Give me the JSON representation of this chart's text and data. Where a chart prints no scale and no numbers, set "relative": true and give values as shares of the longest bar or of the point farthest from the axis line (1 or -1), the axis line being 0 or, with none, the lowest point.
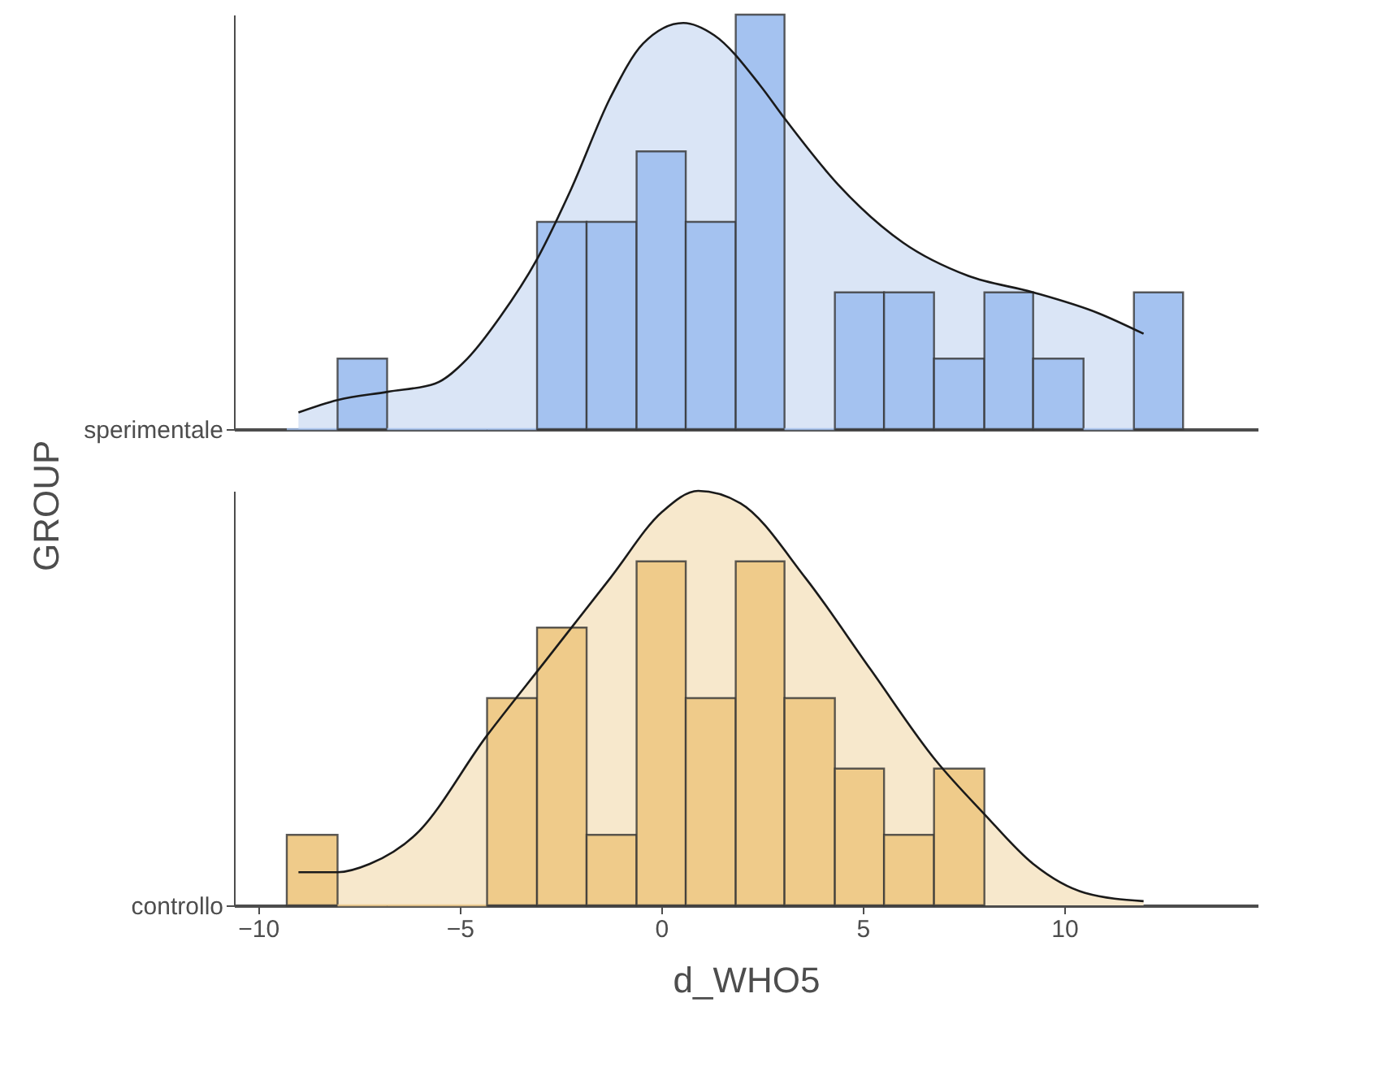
{
  "chart_data": [
    {
      "type": "histogram",
      "relative": true,
      "ylabel": "GROUP",
      "xlim": [
        -10.6,
        14.8
      ],
      "xticks": [
        -10,
        -5,
        0,
        5,
        10
      ],
      "tick_labels": false,
      "series": [
        {
          "type": "area",
          "color": "#dae5f6",
          "x": [
            -9,
            -8.03,
            -6.79,
            -5.61,
            -4.81,
            -4,
            -3.08,
            -2.23,
            -1.26,
            -0.45,
            0.55,
            1.32,
            2.45,
            3.06,
            4.39,
            6,
            7.61,
            9.23,
            10.84,
            11.97
          ],
          "values": [
            0.04,
            0.07,
            0.09,
            0.11,
            0.17,
            0.27,
            0.41,
            0.58,
            0.8,
            0.93,
            0.98,
            0.95,
            0.83,
            0.75,
            0.59,
            0.45,
            0.37,
            0.33,
            0.28,
            0.23
          ]
        },
        {
          "type": "histogram",
          "name": "sperimentale",
          "color": "#a4c2f0",
          "bins": [
            -9.29,
            -8.03,
            -6.8,
            -5.56,
            -4.32,
            -3.08,
            -1.85,
            -0.61,
            0.61,
            1.85,
            3.06,
            4.31,
            5.53,
            6.77,
            8.02,
            9.23,
            10.48,
            11.73,
            12.95
          ],
          "values": [
            0,
            0.17,
            0,
            0,
            0,
            0.5,
            0.5,
            0.67,
            0.5,
            1,
            0,
            0.33,
            0.33,
            0.17,
            0.33,
            0.17,
            0,
            0.33
          ]
        }
      ]
    },
    {
      "type": "histogram",
      "relative": true,
      "xlabel": "d_WHO5",
      "xlim": [
        -10.6,
        14.8
      ],
      "xticks": [
        -10,
        -5,
        0,
        5,
        10
      ],
      "series": [
        {
          "type": "area",
          "color": "#f7e8cc",
          "x": [
            -9,
            -8.03,
            -7.23,
            -6.1,
            -4.32,
            -2.87,
            -1.26,
            0.03,
            0.92,
            1.97,
            3.58,
            5.19,
            6.81,
            8.02,
            9.23,
            10.52,
            11.97
          ],
          "values": [
            0.08,
            0.08,
            0.1,
            0.17,
            0.41,
            0.59,
            0.79,
            0.95,
            1,
            0.97,
            0.79,
            0.57,
            0.35,
            0.22,
            0.1,
            0.03,
            0.01
          ]
        },
        {
          "type": "histogram",
          "name": "controllo",
          "color": "#efcb8a",
          "bins": [
            -9.29,
            -8.03,
            -6.8,
            -5.56,
            -4.32,
            -3.08,
            -1.85,
            -0.61,
            0.61,
            1.85,
            3.06,
            4.31,
            5.53,
            6.77,
            8.02
          ],
          "values": [
            0.17,
            0,
            0,
            0,
            0.5,
            0.67,
            0.17,
            0.83,
            0.5,
            0.83,
            0.5,
            0.33,
            0.17,
            0.33
          ]
        }
      ]
    }
  ]
}
